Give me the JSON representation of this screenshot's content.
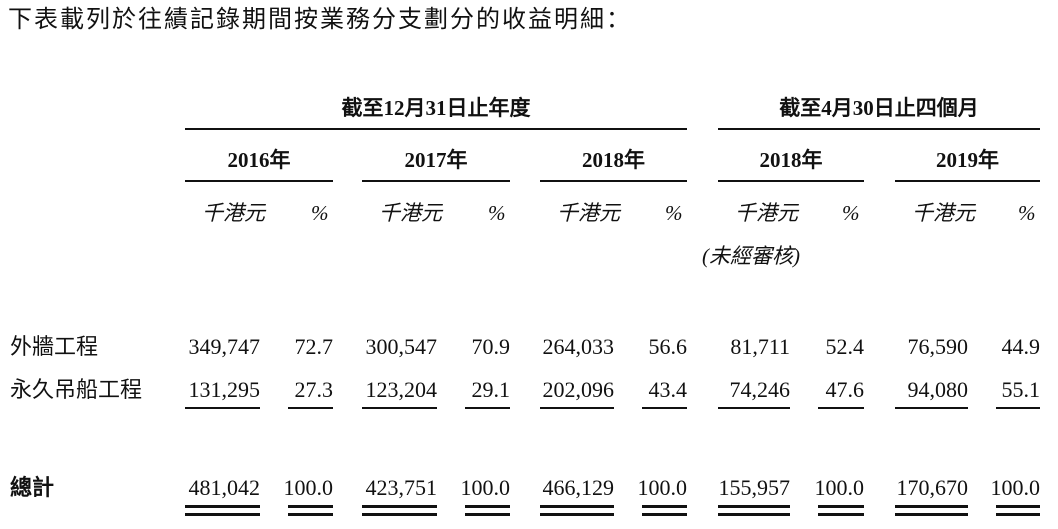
{
  "intro": "下表載列於往績記錄期間按業務分支劃分的收益明細：",
  "table": {
    "groups": [
      {
        "label": "截至12月31日止年度",
        "years": [
          "2016年",
          "2017年",
          "2018年"
        ]
      },
      {
        "label": "截至4月30日止四個月",
        "years": [
          "2018年",
          "2019年"
        ]
      }
    ],
    "units": {
      "amount": "千港元",
      "percent": "%"
    },
    "unaudited_note": "(未經審核)",
    "rows": [
      {
        "label": "外牆工程",
        "cells": [
          "349,747",
          "72.7",
          "300,547",
          "70.9",
          "264,033",
          "56.6",
          "81,711",
          "52.4",
          "76,590",
          "44.9"
        ]
      },
      {
        "label": "永久吊船工程",
        "cells": [
          "131,295",
          "27.3",
          "123,204",
          "29.1",
          "202,096",
          "43.4",
          "74,246",
          "47.6",
          "94,080",
          "55.1"
        ]
      },
      {
        "label": "總計",
        "cells": [
          "481,042",
          "100.0",
          "423,751",
          "100.0",
          "466,129",
          "100.0",
          "155,957",
          "100.0",
          "170,670",
          "100.0"
        ]
      }
    ]
  }
}
